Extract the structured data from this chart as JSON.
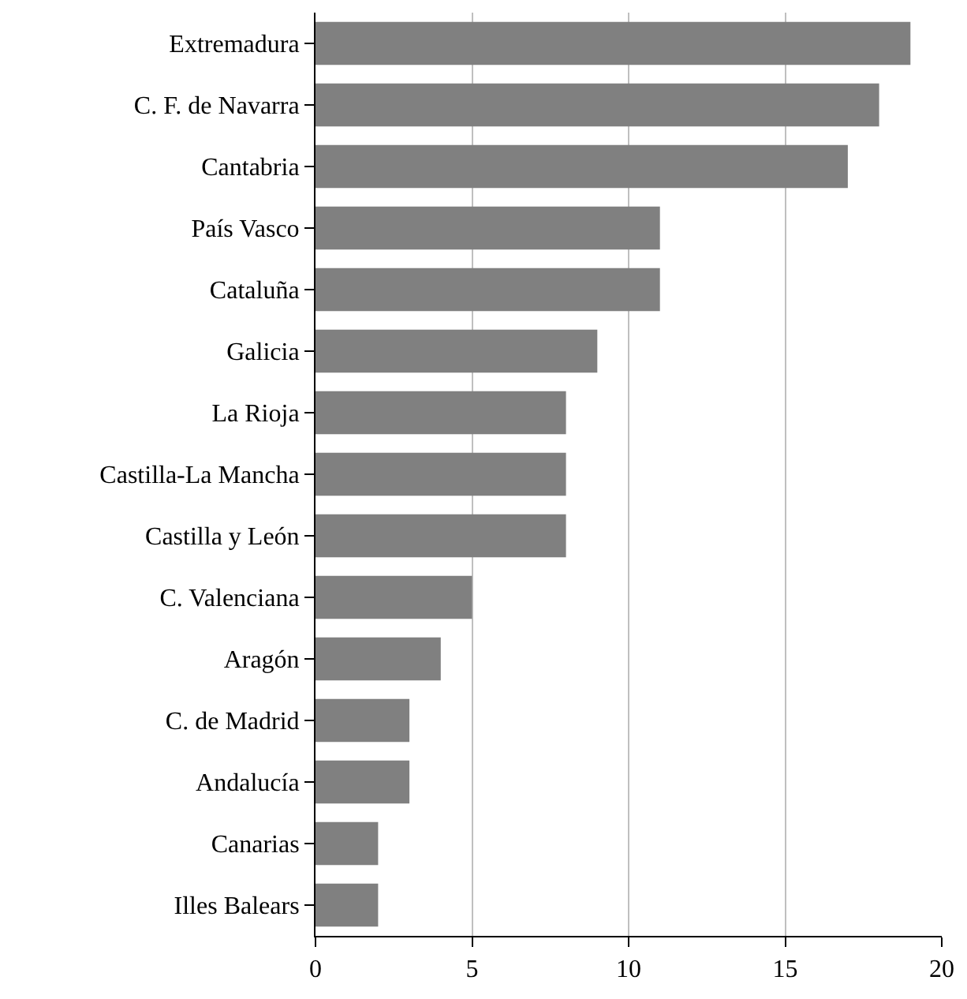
{
  "chart_data": {
    "type": "bar",
    "orientation": "horizontal",
    "categories": [
      "Extremadura",
      "C. F. de Navarra",
      "Cantabria",
      "País Vasco",
      "Cataluña",
      "Galicia",
      "La Rioja",
      "Castilla-La Mancha",
      "Castilla y León",
      "C. Valenciana",
      "Aragón",
      "C. de Madrid",
      "Andalucía",
      "Canarias",
      "Illes Balears"
    ],
    "values": [
      19,
      18,
      17,
      11,
      11,
      9,
      8,
      8,
      8,
      5,
      4,
      3,
      3,
      2,
      2
    ],
    "color": "#808080",
    "xlim": [
      0,
      20
    ],
    "xticks": [
      0,
      5,
      10,
      15,
      20
    ],
    "grid": "x"
  }
}
